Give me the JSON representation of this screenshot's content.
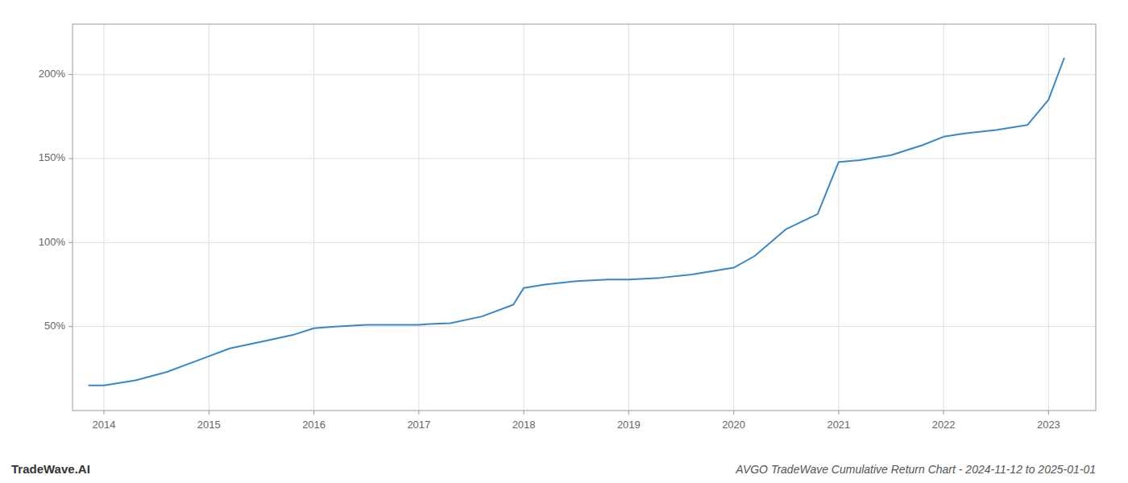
{
  "chart_data": {
    "type": "line",
    "title": "AVGO TradeWave Cumulative Return Chart - 2024-11-12 to 2025-01-01",
    "annotations": [
      "TradeWave.AI"
    ],
    "x": [
      2013.85,
      2014.0,
      2014.3,
      2014.6,
      2014.9,
      2015.2,
      2015.5,
      2015.8,
      2016.0,
      2016.2,
      2016.5,
      2016.8,
      2017.0,
      2017.1,
      2017.3,
      2017.6,
      2017.9,
      2018.0,
      2018.2,
      2018.5,
      2018.8,
      2019.0,
      2019.3,
      2019.6,
      2019.8,
      2020.0,
      2020.2,
      2020.5,
      2020.8,
      2021.0,
      2021.2,
      2021.5,
      2021.8,
      2022.0,
      2022.2,
      2022.5,
      2022.8,
      2023.0,
      2023.15
    ],
    "values": [
      15,
      15,
      18,
      23,
      30,
      37,
      41,
      45,
      49,
      50,
      51,
      51,
      51,
      51.5,
      52,
      56,
      63,
      73,
      75,
      77,
      78,
      78,
      79,
      81,
      83,
      85,
      92,
      108,
      117,
      148,
      149,
      152,
      158,
      163,
      165,
      167,
      170,
      185,
      210
    ],
    "color": "#3a87c8",
    "xlim": [
      2013.7,
      2023.45
    ],
    "xticks": [
      2014,
      2015,
      2016,
      2017,
      2018,
      2019,
      2020,
      2021,
      2022,
      2023
    ],
    "ylim": [
      0,
      230
    ],
    "yticks": [
      {
        "value": 50,
        "label": "50%"
      },
      {
        "value": 100,
        "label": "100%"
      },
      {
        "value": 150,
        "label": "150%"
      },
      {
        "value": 200,
        "label": "200%"
      }
    ],
    "grid": true
  }
}
